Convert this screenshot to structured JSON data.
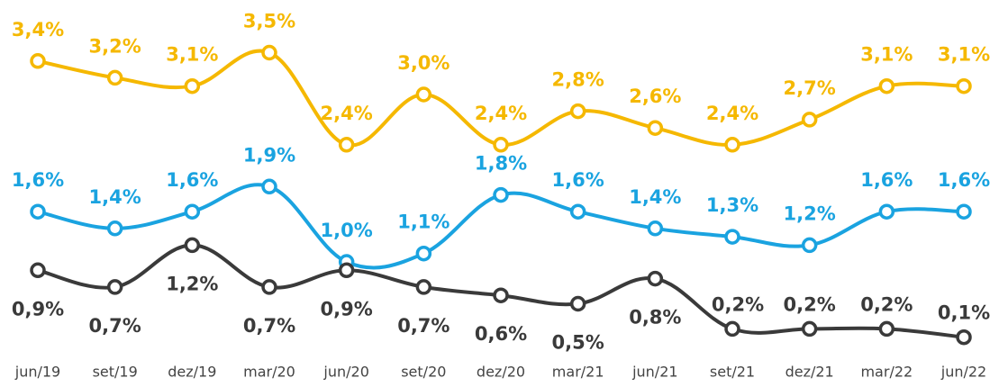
{
  "chart_data": {
    "type": "line",
    "categories": [
      "jun/19",
      "set/19",
      "dez/19",
      "mar/20",
      "jun/20",
      "set/20",
      "dez/20",
      "mar/21",
      "jun/21",
      "set/21",
      "dez/21",
      "mar/22",
      "jun/22"
    ],
    "ylim": [
      0,
      4
    ],
    "series": [
      {
        "color": "#f5b800",
        "values": [
          3.4,
          3.2,
          3.1,
          3.5,
          2.4,
          3.0,
          2.4,
          2.8,
          2.6,
          2.4,
          2.7,
          3.1,
          3.1
        ],
        "value_labels": [
          "3,4%",
          "3,2%",
          "3,1%",
          "3,5%",
          "2,4%",
          "3,0%",
          "2,4%",
          "2,8%",
          "2,6%",
          "2,4%",
          "2,7%",
          "3,1%",
          "3,1%"
        ]
      },
      {
        "color": "#1aa3e0",
        "values": [
          1.6,
          1.4,
          1.6,
          1.9,
          1.0,
          1.1,
          1.8,
          1.6,
          1.4,
          1.3,
          1.2,
          1.6,
          1.6
        ],
        "value_labels": [
          "1,6%",
          "1,4%",
          "1,6%",
          "1,9%",
          "1,0%",
          "1,1%",
          "1,8%",
          "1,6%",
          "1,4%",
          "1,3%",
          "1,2%",
          "1,6%",
          "1,6%"
        ]
      },
      {
        "color": "#3a3a3a",
        "values": [
          0.9,
          0.7,
          1.2,
          0.7,
          0.9,
          0.7,
          0.6,
          0.5,
          0.8,
          0.2,
          0.2,
          0.2,
          0.1
        ],
        "value_labels": [
          "0,9%",
          "0,7%",
          "1,2%",
          "0,7%",
          "0,9%",
          "0,7%",
          "0,6%",
          "0,5%",
          "0,8%",
          "0,2%",
          "0,2%",
          "0,2%",
          "0,1%"
        ]
      }
    ]
  }
}
